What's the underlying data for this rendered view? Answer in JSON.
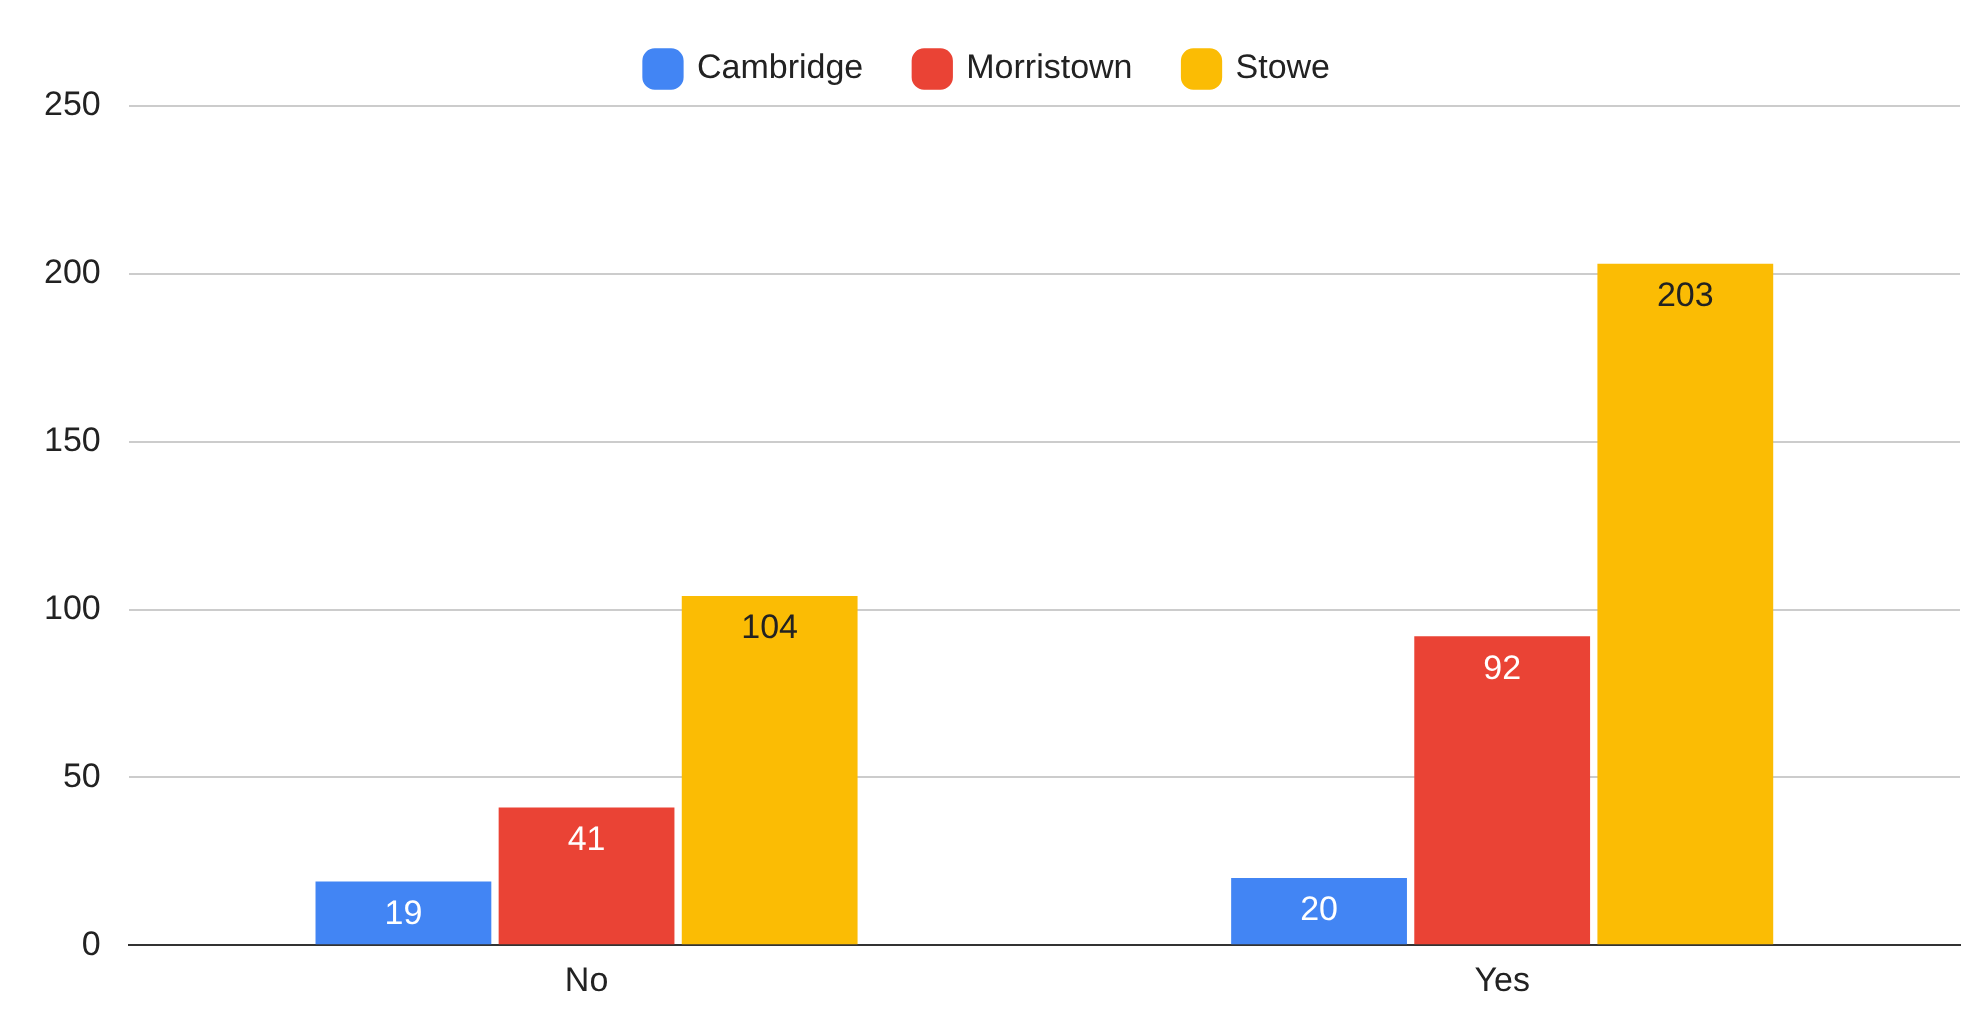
{
  "chart_data": {
    "type": "bar",
    "categories": [
      "No",
      "Yes"
    ],
    "series": [
      {
        "name": "Cambridge",
        "color": "#4285f4",
        "values": [
          19,
          20
        ]
      },
      {
        "name": "Morristown",
        "color": "#ea4335",
        "values": [
          41,
          92
        ]
      },
      {
        "name": "Stowe",
        "color": "#fbbc04",
        "values": [
          104,
          203
        ]
      }
    ],
    "ylim": [
      0,
      250
    ],
    "yticks": [
      0,
      50,
      100,
      150,
      200,
      250
    ],
    "grid": "y",
    "legend": "top",
    "data_labels": true
  }
}
